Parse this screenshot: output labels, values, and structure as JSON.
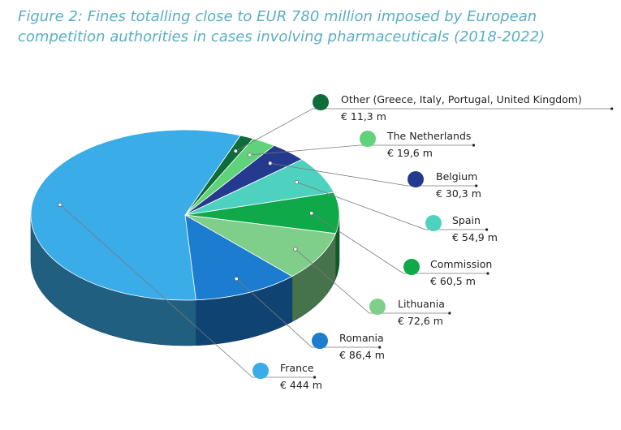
{
  "figure": {
    "title_line1": "Figure 2: Fines totalling close to EUR 780 million imposed by European",
    "title_line2": "competition authorities in cases involving pharmaceuticals (2018-2022)"
  },
  "chart_data": {
    "type": "pie",
    "title": "Figure 2: Fines totalling close to EUR 780 million imposed by European competition authorities in cases involving pharmaceuticals (2018-2022)",
    "unit": "EUR million",
    "slices": [
      {
        "label": "Other (Greece, Italy, Portugal, United Kingdom)",
        "value": 11.3,
        "value_label": "€ 11,3 m",
        "color": "#0e6b3a"
      },
      {
        "label": "The Netherlands",
        "value": 19.6,
        "value_label": "€ 19,6 m",
        "color": "#5fd27a"
      },
      {
        "label": "Belgium",
        "value": 30.3,
        "value_label": "€ 30,3 m",
        "color": "#243a8f"
      },
      {
        "label": "Spain",
        "value": 54.9,
        "value_label": "€ 54,9 m",
        "color": "#4fd1c0"
      },
      {
        "label": "Commission",
        "value": 60.5,
        "value_label": "€ 60,5 m",
        "color": "#10a94a"
      },
      {
        "label": "Lithuania",
        "value": 72.6,
        "value_label": "€ 72,6 m",
        "color": "#7fcf8b"
      },
      {
        "label": "Romania",
        "value": 86.4,
        "value_label": "€ 86,4 m",
        "color": "#1c7ccf"
      },
      {
        "label": "France",
        "value": 444,
        "value_label": "€ 444 m",
        "color": "#3aace8"
      }
    ]
  }
}
